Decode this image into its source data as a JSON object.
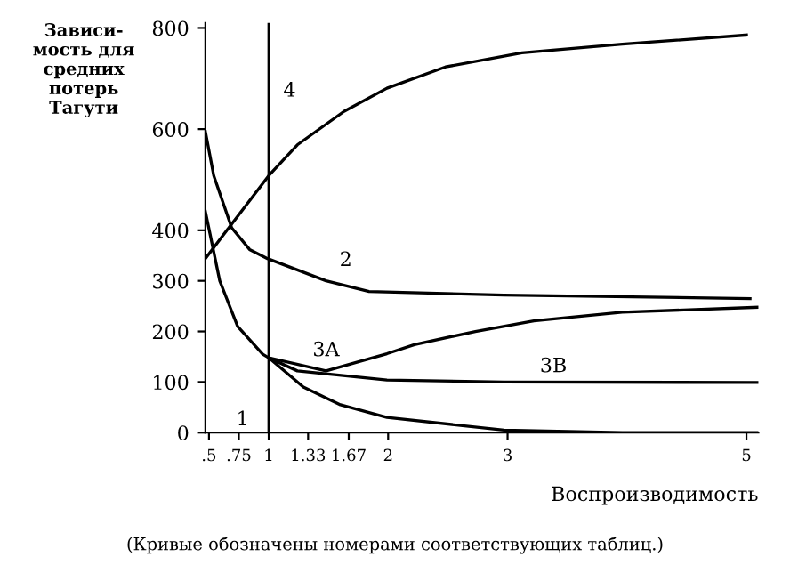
{
  "chart_data": {
    "type": "line",
    "ylabel": "Зависи-\nмость для\nсредних\nпотерь\nТагути",
    "xlabel": "Воспроизводимость",
    "annotations": [
      "(Кривые обозначены номерами соответствующих таблиц.)"
    ],
    "xlim": [
      0.47,
      5.1
    ],
    "ylim": [
      0,
      810
    ],
    "xticks": [
      {
        "value": 0.5,
        "label": ".5"
      },
      {
        "value": 0.75,
        "label": ".75"
      },
      1,
      1.33,
      1.67,
      2,
      3,
      5
    ],
    "yticks": [
      0,
      100,
      200,
      300,
      400,
      600,
      800
    ],
    "ref_lines": [
      {
        "axis": "x",
        "value": 1,
        "label": null,
        "color": "#000000"
      }
    ],
    "grid": false,
    "legend": false,
    "marker": "none",
    "line_style": "solid",
    "series": [
      {
        "name": "1",
        "color": "#000000",
        "x": [
          0.47,
          0.59,
          0.74,
          0.95,
          1.0,
          1.29,
          1.6,
          1.99,
          2.97,
          3.96,
          5.1
        ],
        "values": [
          437,
          300,
          210,
          155,
          148,
          90,
          55,
          30,
          5,
          0,
          0
        ]
      },
      {
        "name": "2",
        "color": "#000000",
        "x": [
          0.47,
          0.54,
          0.69,
          0.84,
          0.99,
          1.48,
          1.84,
          2.97,
          5.03
        ],
        "values": [
          595,
          508,
          405,
          362,
          344,
          300,
          279,
          272,
          265
        ]
      },
      {
        "name": "4",
        "color": "#000000",
        "x": [
          0.47,
          0.65,
          1.0,
          1.24,
          1.63,
          1.99,
          2.48,
          3.12,
          3.96,
          5.0
        ],
        "values": [
          344,
          400,
          508,
          569,
          635,
          681,
          723,
          751,
          768,
          786
        ]
      },
      {
        "name": "3A",
        "color": "#000000",
        "x": [
          1.0,
          1.48,
          1.99,
          2.22,
          2.73,
          3.22,
          3.96,
          5.1
        ],
        "values": [
          148,
          122,
          156,
          174,
          200,
          221,
          238,
          248
        ]
      },
      {
        "name": "3B",
        "color": "#000000",
        "x": [
          1.0,
          1.24,
          1.99,
          2.97,
          5.1
        ],
        "values": [
          148,
          122,
          104,
          100,
          99
        ]
      }
    ]
  }
}
